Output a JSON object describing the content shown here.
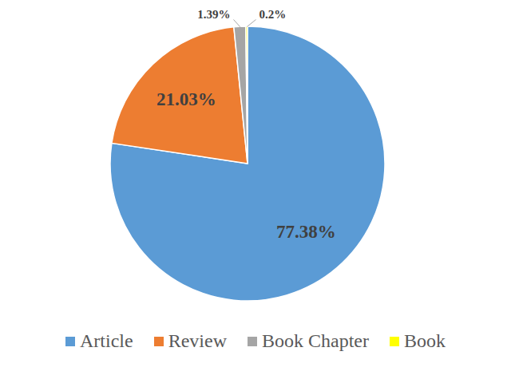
{
  "chart_data": {
    "type": "pie",
    "categories": [
      "Article",
      "Review",
      "Book Chapter",
      "Book"
    ],
    "values": [
      77.38,
      21.03,
      1.39,
      0.2
    ],
    "value_labels": [
      "77.38%",
      "21.03%",
      "1.39%",
      "0.2%"
    ],
    "colors": [
      "#5b9bd5",
      "#ed7d31",
      "#a5a5a5",
      "#ffff00"
    ],
    "data_labels": true,
    "legend": "bottom"
  }
}
